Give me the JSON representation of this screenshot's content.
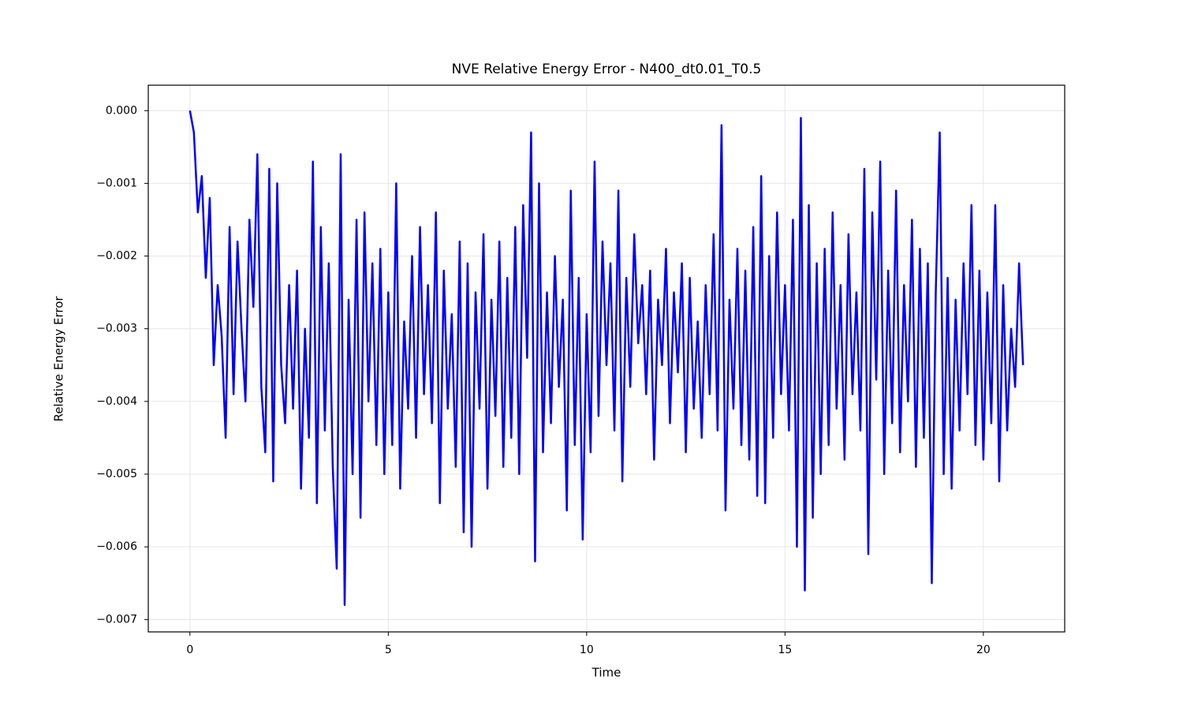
{
  "chart_data": {
    "type": "line",
    "title": "NVE Relative Energy Error - N400_dt0.01_T0.5",
    "xlabel": "Time",
    "ylabel": "Relative Energy Error",
    "x": [
      0,
      0.1,
      0.2,
      0.3,
      0.4,
      0.5,
      0.6,
      0.7,
      0.8,
      0.9,
      1,
      1.1,
      1.2,
      1.3,
      1.4,
      1.5,
      1.6,
      1.7,
      1.8,
      1.9,
      2,
      2.1,
      2.2,
      2.3,
      2.4,
      2.5,
      2.6,
      2.7,
      2.8,
      2.9,
      3,
      3.1,
      3.2,
      3.3,
      3.4,
      3.5,
      3.6,
      3.7,
      3.8,
      3.9,
      4,
      4.1,
      4.2,
      4.3,
      4.4,
      4.5,
      4.6,
      4.7,
      4.8,
      4.9,
      5,
      5.1,
      5.2,
      5.3,
      5.4,
      5.5,
      5.6,
      5.7,
      5.8,
      5.9,
      6,
      6.1,
      6.2,
      6.3,
      6.4,
      6.5,
      6.6,
      6.7,
      6.8,
      6.9,
      7,
      7.1,
      7.2,
      7.3,
      7.4,
      7.5,
      7.6,
      7.7,
      7.8,
      7.9,
      8,
      8.1,
      8.2,
      8.3,
      8.4,
      8.5,
      8.6,
      8.7,
      8.8,
      8.9,
      9,
      9.1,
      9.2,
      9.3,
      9.4,
      9.5,
      9.6,
      9.7,
      9.8,
      9.9,
      10,
      10.1,
      10.2,
      10.3,
      10.4,
      10.5,
      10.6,
      10.7,
      10.8,
      10.9,
      11,
      11.1,
      11.2,
      11.3,
      11.4,
      11.5,
      11.6,
      11.7,
      11.8,
      11.9,
      12,
      12.1,
      12.2,
      12.3,
      12.4,
      12.5,
      12.6,
      12.7,
      12.8,
      12.9,
      13,
      13.1,
      13.2,
      13.3,
      13.4,
      13.5,
      13.6,
      13.7,
      13.8,
      13.9,
      14,
      14.1,
      14.2,
      14.3,
      14.4,
      14.5,
      14.6,
      14.7,
      14.8,
      14.9,
      15,
      15.1,
      15.2,
      15.3,
      15.4,
      15.5,
      15.6,
      15.7,
      15.8,
      15.9,
      16,
      16.1,
      16.2,
      16.3,
      16.4,
      16.5,
      16.6,
      16.7,
      16.8,
      16.9,
      17,
      17.1,
      17.2,
      17.3,
      17.4,
      17.5,
      17.6,
      17.7,
      17.8,
      17.9,
      18,
      18.1,
      18.2,
      18.3,
      18.4,
      18.5,
      18.6,
      18.7,
      18.8,
      18.9,
      19,
      19.1,
      19.2,
      19.3,
      19.4,
      19.5,
      19.6,
      19.7,
      19.8,
      19.9,
      20,
      20.1,
      20.2,
      20.3,
      20.4,
      20.5,
      20.6,
      20.7,
      20.8,
      20.9,
      21
    ],
    "values": [
      0,
      -0.0003,
      -0.0014,
      -0.0009,
      -0.0023,
      -0.0012,
      -0.0035,
      -0.0024,
      -0.0031,
      -0.0045,
      -0.0016,
      -0.0039,
      -0.0018,
      -0.003,
      -0.004,
      -0.0015,
      -0.0027,
      -0.0006,
      -0.0038,
      -0.0047,
      -0.0008,
      -0.0051,
      -0.001,
      -0.0035,
      -0.0043,
      -0.0024,
      -0.0041,
      -0.0022,
      -0.0052,
      -0.003,
      -0.0045,
      -0.0007,
      -0.0054,
      -0.0016,
      -0.0044,
      -0.0021,
      -0.0049,
      -0.0063,
      -0.0006,
      -0.0068,
      -0.0026,
      -0.005,
      -0.0015,
      -0.0056,
      -0.0014,
      -0.004,
      -0.0021,
      -0.0046,
      -0.0019,
      -0.005,
      -0.0025,
      -0.0046,
      -0.001,
      -0.0052,
      -0.0029,
      -0.0041,
      -0.002,
      -0.0045,
      -0.0016,
      -0.0039,
      -0.0024,
      -0.0043,
      -0.0014,
      -0.0054,
      -0.0022,
      -0.0041,
      -0.0028,
      -0.0049,
      -0.0018,
      -0.0058,
      -0.0021,
      -0.006,
      -0.0025,
      -0.0041,
      -0.0017,
      -0.0052,
      -0.0026,
      -0.0042,
      -0.0018,
      -0.0049,
      -0.0023,
      -0.0045,
      -0.0016,
      -0.005,
      -0.0013,
      -0.0034,
      -0.0003,
      -0.0062,
      -0.001,
      -0.0047,
      -0.0025,
      -0.0043,
      -0.002,
      -0.0038,
      -0.0026,
      -0.0055,
      -0.0011,
      -0.0046,
      -0.0023,
      -0.0059,
      -0.0028,
      -0.0047,
      -0.0007,
      -0.0042,
      -0.0018,
      -0.0035,
      -0.0021,
      -0.0044,
      -0.0011,
      -0.0051,
      -0.0023,
      -0.0038,
      -0.0017,
      -0.0032,
      -0.0024,
      -0.0039,
      -0.0022,
      -0.0048,
      -0.0026,
      -0.0035,
      -0.0019,
      -0.0043,
      -0.0025,
      -0.0036,
      -0.0021,
      -0.0047,
      -0.0023,
      -0.0041,
      -0.0029,
      -0.0045,
      -0.0024,
      -0.0039,
      -0.0017,
      -0.0044,
      -0.0002,
      -0.0055,
      -0.0026,
      -0.0041,
      -0.0019,
      -0.0046,
      -0.0022,
      -0.0048,
      -0.0016,
      -0.0053,
      -0.0009,
      -0.0054,
      -0.002,
      -0.0045,
      -0.0014,
      -0.0039,
      -0.0024,
      -0.0044,
      -0.0015,
      -0.006,
      -0.0001,
      -0.0066,
      -0.0013,
      -0.0056,
      -0.0021,
      -0.005,
      -0.0019,
      -0.0046,
      -0.0014,
      -0.0041,
      -0.0024,
      -0.0048,
      -0.0017,
      -0.0039,
      -0.0025,
      -0.0044,
      -0.0008,
      -0.0061,
      -0.0014,
      -0.0037,
      -0.0007,
      -0.005,
      -0.0022,
      -0.0043,
      -0.0011,
      -0.0047,
      -0.0024,
      -0.004,
      -0.0015,
      -0.0049,
      -0.0019,
      -0.0045,
      -0.0021,
      -0.0065,
      -0.0025,
      -0.0003,
      -0.005,
      -0.0023,
      -0.0052,
      -0.0026,
      -0.0044,
      -0.0021,
      -0.0039,
      -0.0013,
      -0.0046,
      -0.0022,
      -0.0048,
      -0.0025,
      -0.0043,
      -0.0013,
      -0.0051,
      -0.0024,
      -0.0044,
      -0.003,
      -0.0038,
      -0.0021,
      -0.0035
    ],
    "color": "#0000ff",
    "xlim": [
      -1.05,
      22.05
    ],
    "xticks": [
      0,
      5,
      10,
      15,
      20
    ],
    "ylim": [
      -0.00717,
      0.00035
    ],
    "yticks": [
      {
        "value": 0,
        "label": "0.000"
      },
      {
        "value": -0.001,
        "label": "−0.001"
      },
      {
        "value": -0.002,
        "label": "−0.002"
      },
      {
        "value": -0.003,
        "label": "−0.003"
      },
      {
        "value": -0.004,
        "label": "−0.004"
      },
      {
        "value": -0.005,
        "label": "−0.005"
      },
      {
        "value": -0.006,
        "label": "−0.006"
      },
      {
        "value": -0.007,
        "label": "−0.007"
      }
    ],
    "grid": true
  }
}
